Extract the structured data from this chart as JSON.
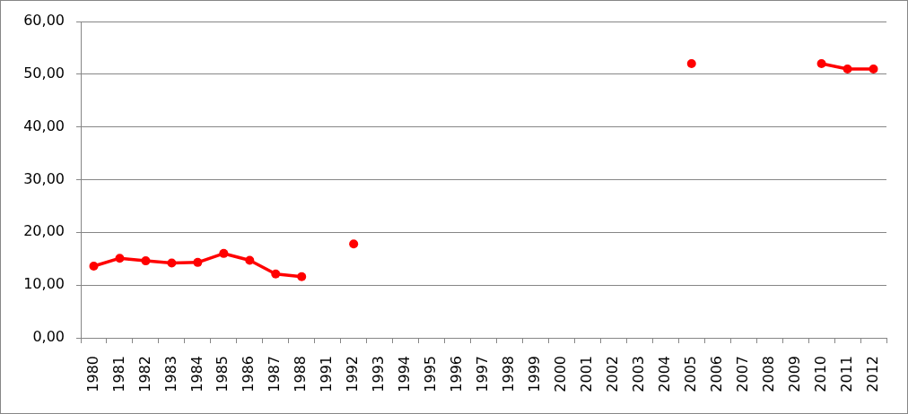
{
  "chart_data": {
    "type": "line",
    "categories": [
      "1980",
      "1981",
      "1982",
      "1983",
      "1984",
      "1985",
      "1986",
      "1987",
      "1988",
      "1991",
      "1992",
      "1993",
      "1994",
      "1995",
      "1996",
      "1997",
      "1998",
      "1999",
      "2000",
      "2001",
      "2002",
      "2003",
      "2004",
      "2005",
      "2006",
      "2007",
      "2008",
      "2009",
      "2010",
      "2011",
      "2012"
    ],
    "values": [
      13.6,
      15.1,
      14.6,
      14.2,
      14.3,
      16.0,
      14.7,
      12.1,
      11.6,
      null,
      17.8,
      null,
      null,
      null,
      null,
      null,
      null,
      null,
      null,
      null,
      null,
      null,
      null,
      52.0,
      null,
      null,
      null,
      null,
      52.0,
      51.0,
      51.0
    ],
    "color": "#ff0000",
    "ylim": [
      0,
      60
    ],
    "yticks": [
      {
        "value": 0,
        "label": "0,00"
      },
      {
        "value": 10,
        "label": "10,00"
      },
      {
        "value": 20,
        "label": "20,00"
      },
      {
        "value": 30,
        "label": "30,00"
      },
      {
        "value": 40,
        "label": "40,00"
      },
      {
        "value": 50,
        "label": "50,00"
      },
      {
        "value": 60,
        "label": "60,00"
      }
    ],
    "grid": "y",
    "marker": "circle",
    "line_style": "solid"
  }
}
